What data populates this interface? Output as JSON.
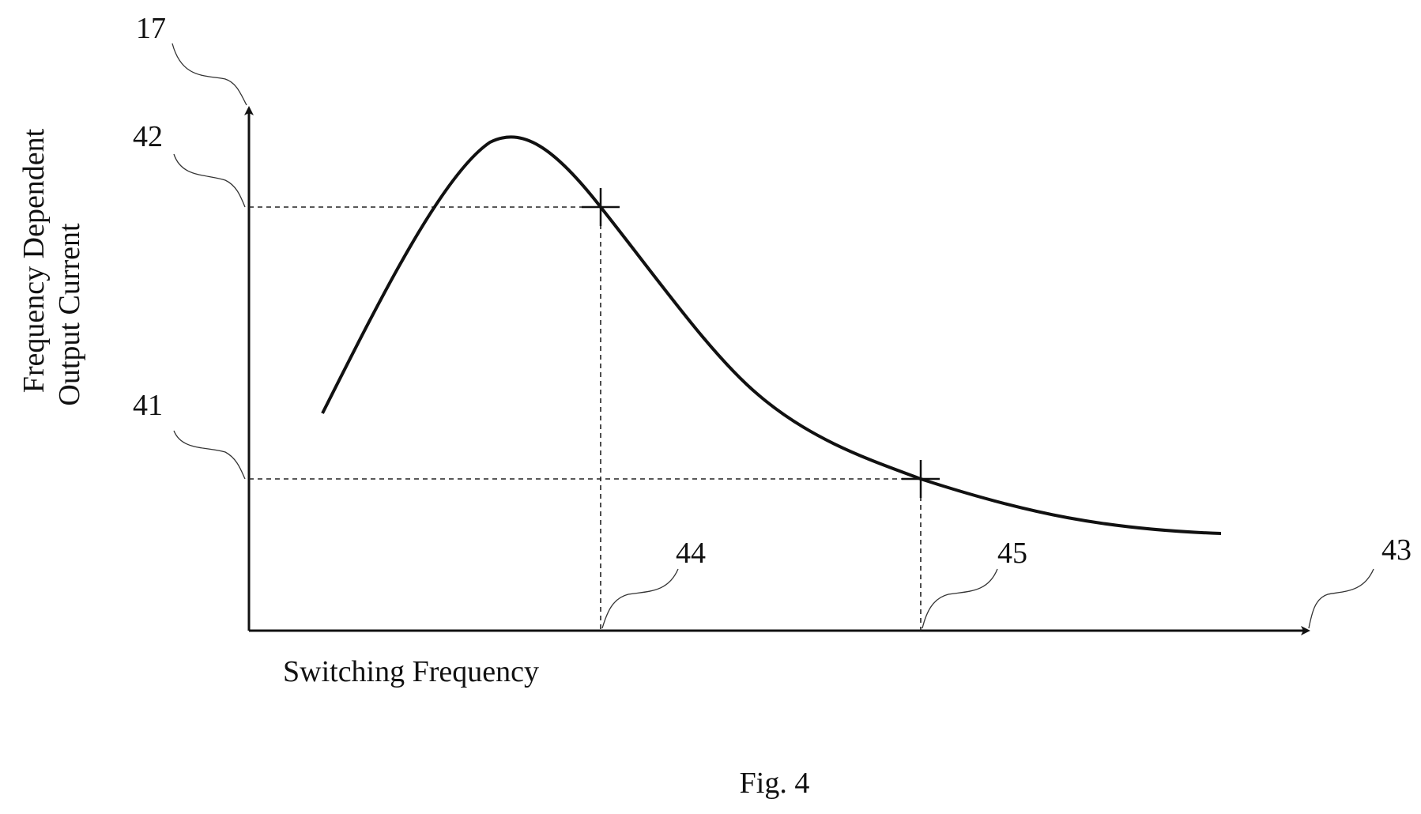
{
  "figure": {
    "caption": "Fig. 4",
    "y_axis_label_line1": "Frequency Dependent",
    "y_axis_label_line2": "Output Current",
    "x_axis_label": "Switching Frequency",
    "refs": {
      "diagram": "17",
      "current_high": "42",
      "current_low": "41",
      "x_axis": "43",
      "freq_a": "44",
      "freq_b": "45"
    }
  }
}
